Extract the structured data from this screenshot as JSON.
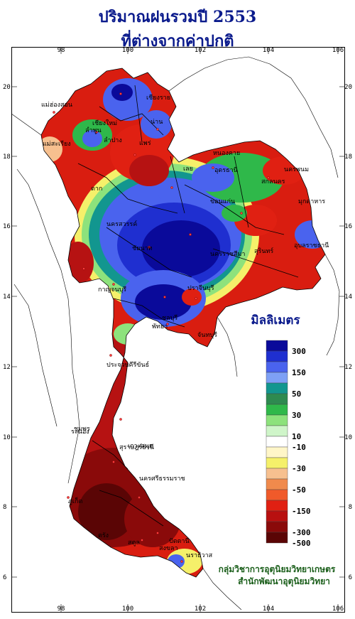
{
  "title": {
    "line1": "ปริมาณฝนรวมปี  2553",
    "line2": "ที่ต่างจากค่าปกติ"
  },
  "axes": {
    "lon_ticks": [
      "98",
      "100",
      "102",
      "104",
      "106"
    ],
    "lat_ticks": [
      "20",
      "18",
      "16",
      "14",
      "12",
      "10",
      "8",
      "6"
    ]
  },
  "legend": {
    "title": "มิลลิเมตร",
    "bins": [
      {
        "color": "#0a0a9a"
      },
      {
        "color": "#1f2fd0"
      },
      {
        "color": "#4a63ee"
      },
      {
        "color": "#7ea0f5"
      },
      {
        "color": "#12968f"
      },
      {
        "color": "#2e8a50"
      },
      {
        "color": "#2fb84a"
      },
      {
        "color": "#8de27c"
      },
      {
        "color": "#cff5c9"
      },
      {
        "color": "#ffffff"
      },
      {
        "color": "#fff6c8"
      },
      {
        "color": "#f5f06a"
      },
      {
        "color": "#f7c08f"
      },
      {
        "color": "#f08a4c"
      },
      {
        "color": "#f05a2a"
      },
      {
        "color": "#e02012"
      },
      {
        "color": "#b81010"
      },
      {
        "color": "#8a0a0a"
      },
      {
        "color": "#5a0505"
      }
    ],
    "labels": [
      "300",
      "150",
      "50",
      "30",
      "10",
      "-10",
      "-30",
      "-50",
      "-150",
      "-300",
      "-500"
    ]
  },
  "places": [
    "เชียงราย",
    "แม่ฮ่องสอน",
    "เชียงใหม่",
    "ลำพูน",
    "ลำปาง",
    "น่าน",
    "แพร่",
    "แม่สะเรียง",
    "หนองคาย",
    "อุดรธานี",
    "สกลนคร",
    "นครพนม",
    "มุกดาหาร",
    "ตาก",
    "เลย",
    "ขอนแก่น",
    "อุบลราชธานี",
    "นครสวรรค์",
    "สุรินทร์",
    "ชัยนาท",
    "นครราชสีมา",
    "กาญจนบุรี",
    "ปราจีนบุรี",
    "ชลบุรี",
    "จันทบุรี",
    "พัทยา",
    "ประจวบคีรีขันธ์",
    "ชุมพร",
    "ระนอง",
    "สุราษฎร์ธานี",
    "นครศรีธรรมราช",
    "ภูเก็ต",
    "ตรัง",
    "สงขลา",
    "ปัตตานี",
    "นราธิวาส",
    "สตูล",
    "เกาะสมุย"
  ],
  "credits": {
    "line1": "กลุ่มวิชาการอุตุนิยมวิทยาเกษตร",
    "line2": "สำนักพัฒนาอุตุนิยมวิทยา"
  }
}
